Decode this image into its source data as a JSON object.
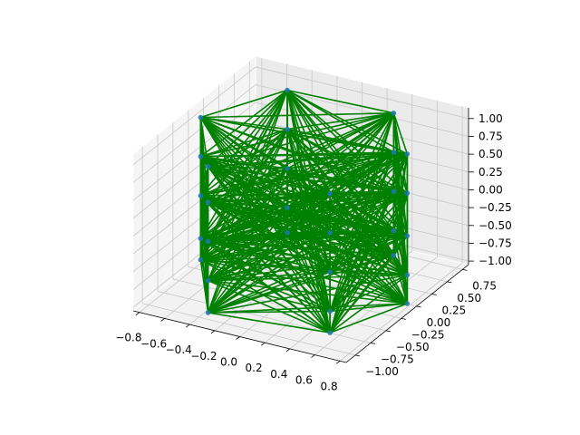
{
  "chart_data": {
    "type": "3d-line",
    "title": "",
    "xlabel": "",
    "ylabel": "",
    "zlabel": "",
    "xlim": [
      -0.85,
      0.85
    ],
    "ylim": [
      -1.15,
      0.85
    ],
    "zlim": [
      -1.05,
      1.15
    ],
    "x_ticks": [
      -0.8,
      -0.6,
      -0.4,
      -0.2,
      0.0,
      0.2,
      0.4,
      0.6,
      0.8
    ],
    "x_tick_labels": [
      "−0.8",
      "−0.6",
      "−0.4",
      "−0.2",
      "0.0",
      "0.2",
      "0.4",
      "0.6",
      "0.8"
    ],
    "y_ticks": [
      -1.0,
      -0.75,
      -0.5,
      -0.25,
      0.0,
      0.25,
      0.5,
      0.75
    ],
    "y_tick_labels": [
      "−1.00",
      "−0.75",
      "−0.50",
      "−0.25",
      "0.00",
      "0.25",
      "0.50",
      "0.75"
    ],
    "z_ticks": [
      -1.0,
      -0.75,
      -0.5,
      -0.25,
      0.0,
      0.25,
      0.5,
      0.75,
      1.0
    ],
    "z_tick_labels": [
      "−1.00",
      "−0.75",
      "−0.50",
      "−0.25",
      "0.00",
      "0.25",
      "0.50",
      "0.75",
      "1.00"
    ],
    "grid": true,
    "points": [
      [
        0.8,
        -0.05,
        1.1
      ],
      [
        0.35,
        0.65,
        1.0
      ],
      [
        -0.45,
        0.55,
        1.05
      ],
      [
        -0.8,
        -0.15,
        1.0
      ],
      [
        -0.35,
        -0.95,
        1.05
      ],
      [
        0.55,
        -0.8,
        0.95
      ],
      [
        0.8,
        -0.05,
        0.55
      ],
      [
        0.35,
        0.65,
        0.45
      ],
      [
        -0.45,
        0.55,
        0.5
      ],
      [
        -0.8,
        -0.15,
        0.45
      ],
      [
        -0.35,
        -0.95,
        0.55
      ],
      [
        0.55,
        -0.8,
        0.4
      ],
      [
        0.8,
        -0.05,
        -0.05
      ],
      [
        0.35,
        0.65,
        -0.1
      ],
      [
        -0.45,
        0.55,
        -0.05
      ],
      [
        -0.8,
        -0.15,
        -0.1
      ],
      [
        -0.35,
        -0.95,
        0.0
      ],
      [
        0.55,
        -0.8,
        -0.15
      ],
      [
        0.8,
        -0.05,
        -0.6
      ],
      [
        0.35,
        0.65,
        -0.65
      ],
      [
        -0.45,
        0.55,
        -0.6
      ],
      [
        -0.8,
        -0.15,
        -0.7
      ],
      [
        -0.35,
        -0.95,
        -0.55
      ],
      [
        0.55,
        -0.8,
        -0.7
      ],
      [
        0.8,
        -0.05,
        -1.0
      ],
      [
        0.35,
        0.65,
        -1.0
      ],
      [
        -0.45,
        0.55,
        -0.95
      ],
      [
        -0.8,
        -0.15,
        -1.0
      ],
      [
        -0.35,
        -0.95,
        -1.0
      ],
      [
        0.55,
        -0.8,
        -1.0
      ]
    ],
    "line_color": "#008000",
    "marker_color": "#1f77b4"
  }
}
